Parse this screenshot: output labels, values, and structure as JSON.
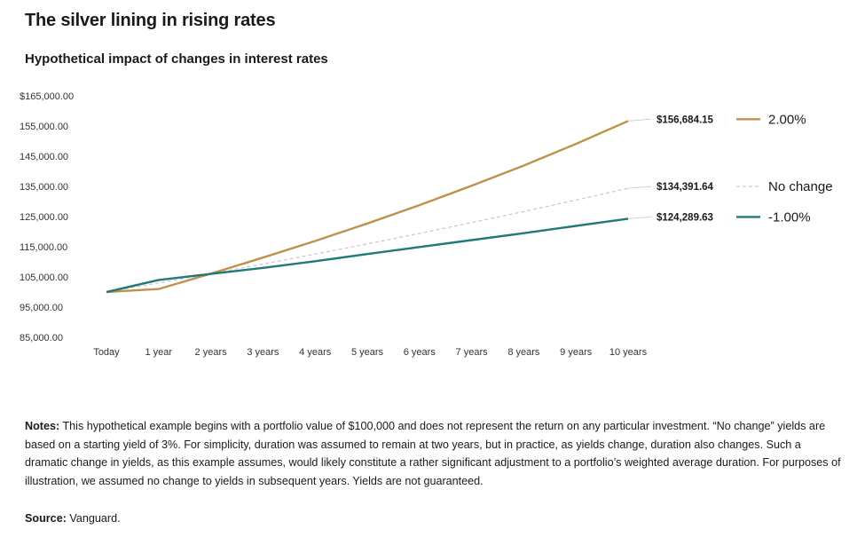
{
  "title": "The silver lining in rising rates",
  "subtitle": "Hypothetical impact of changes in interest rates",
  "notes_label": "Notes:",
  "notes_text": " This hypothetical example begins with a portfolio value of $100,000 and does not represent the return on any particular investment.  “No change” yields are based on a starting yield of 3%. For simplicity, duration was assumed to remain at two years, but in practice, as yields change, duration also changes. Such a dramatic change in yields, as this example assumes, would likely constitute a rather significant adjustment to a portfolio’s weighted average duration. For purposes of illustration, we assumed no change to yields in subsequent years. Yields are not guaranteed.",
  "source_label": "Source:",
  "source_text": " Vanguard.",
  "chart_data": {
    "type": "line",
    "categories": [
      "Today",
      "1 year",
      "2 years",
      "3 years",
      "4 years",
      "5 years",
      "6 years",
      "7 years",
      "8 years",
      "9 years",
      "10 years"
    ],
    "ylim": [
      85000,
      165000
    ],
    "y_ticks": [
      "$165,000.00",
      "155,000.00",
      "145,000.00",
      "135,000.00",
      "125,000.00",
      "115,000.00",
      "105,000.00",
      "95,000.00",
      "85,000.00"
    ],
    "y_tick_values": [
      165000,
      155000,
      145000,
      135000,
      125000,
      115000,
      105000,
      95000,
      85000
    ],
    "grid": false,
    "legend_placement": "right",
    "series": [
      {
        "name": "2.00%",
        "color": "#c0914a",
        "dash": false,
        "end_label": "$156,684.15",
        "values": [
          100000,
          101000,
          106100,
          111400,
          116900,
          122700,
          128800,
          135200,
          141900,
          149100,
          156684.15
        ]
      },
      {
        "name": "No change",
        "color": "#c8c8c8",
        "dash": true,
        "end_label": "$134,391.64",
        "values": [
          100000,
          103000,
          106090,
          109273,
          112551,
          115927,
          119405,
          122987,
          126677,
          130477,
          134391.64
        ]
      },
      {
        "name": "-1.00%",
        "color": "#1f7a78",
        "dash": false,
        "end_label": "$124,289.63",
        "values": [
          100000,
          104000,
          106000,
          108000,
          110200,
          112600,
          114900,
          117200,
          119500,
          121900,
          124289.63
        ]
      }
    ]
  }
}
